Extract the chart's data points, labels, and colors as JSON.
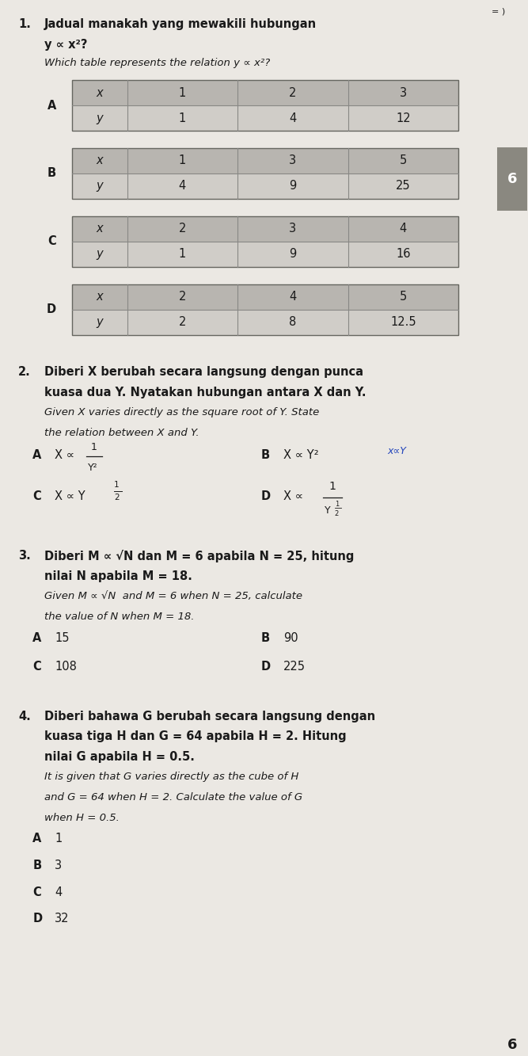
{
  "bg_color": "#ebe8e3",
  "text_color": "#1a1a1a",
  "page_width": 6.67,
  "page_height": 13.33,
  "top_right": "= )",
  "q1_num": "1.",
  "q1_bm1": "Jadual manakah yang mewakili hubungan",
  "q1_bm2": "y ∝ x²?",
  "q1_en": "Which table represents the relation y ∝ x²?",
  "tableA_label": "A",
  "tableA_x": [
    "x",
    "1",
    "2",
    "3"
  ],
  "tableA_y": [
    "y",
    "1",
    "4",
    "12"
  ],
  "tableB_label": "B",
  "tableB_x": [
    "x",
    "1",
    "3",
    "5"
  ],
  "tableB_y": [
    "y",
    "4",
    "9",
    "25"
  ],
  "tableC_label": "C",
  "tableC_x": [
    "x",
    "2",
    "3",
    "4"
  ],
  "tableC_y": [
    "y",
    "1",
    "9",
    "16"
  ],
  "tableD_label": "D",
  "tableD_x": [
    "x",
    "2",
    "4",
    "5"
  ],
  "tableD_y": [
    "y",
    "2",
    "8",
    "12.5"
  ],
  "table_header_color": "#b8b5b0",
  "table_row2_color": "#d0cdc8",
  "table_border_color": "#666660",
  "table_line_color": "#888885",
  "side_bar_color": "#8a8880",
  "side_num": "6",
  "q2_num": "2.",
  "q2_bm1": "Diberi X berubah secara langsung dengan punca",
  "q2_bm2": "kuasa dua Y. Nyatakan hubungan antara X dan Y.",
  "q2_en1": "Given X varies directly as the square root of Y. State",
  "q2_en2": "the relation between X and Y.",
  "q3_num": "3.",
  "q3_bm1": "Diberi M ∝ √N dan M = 6 apabila N = 25, hitung",
  "q3_bm2": "nilai N apabila M = 18.",
  "q3_en1": "Given M ∝ √N  and M = 6 when N = 25, calculate",
  "q3_en2": "the value of N when M = 18.",
  "q4_num": "4.",
  "q4_bm1": "Diberi bahawa G berubah secara langsung dengan",
  "q4_bm2": "kuasa tiga H dan G = 64 apabila H = 2. Hitung",
  "q4_bm3": "nilai G apabila H = 0.5.",
  "q4_en1": "It is given that G varies directly as the cube of H",
  "q4_en2": "and G = 64 when H = 2. Calculate the value of G",
  "q4_en3": "when H = 0.5.",
  "bottom_num": "6"
}
